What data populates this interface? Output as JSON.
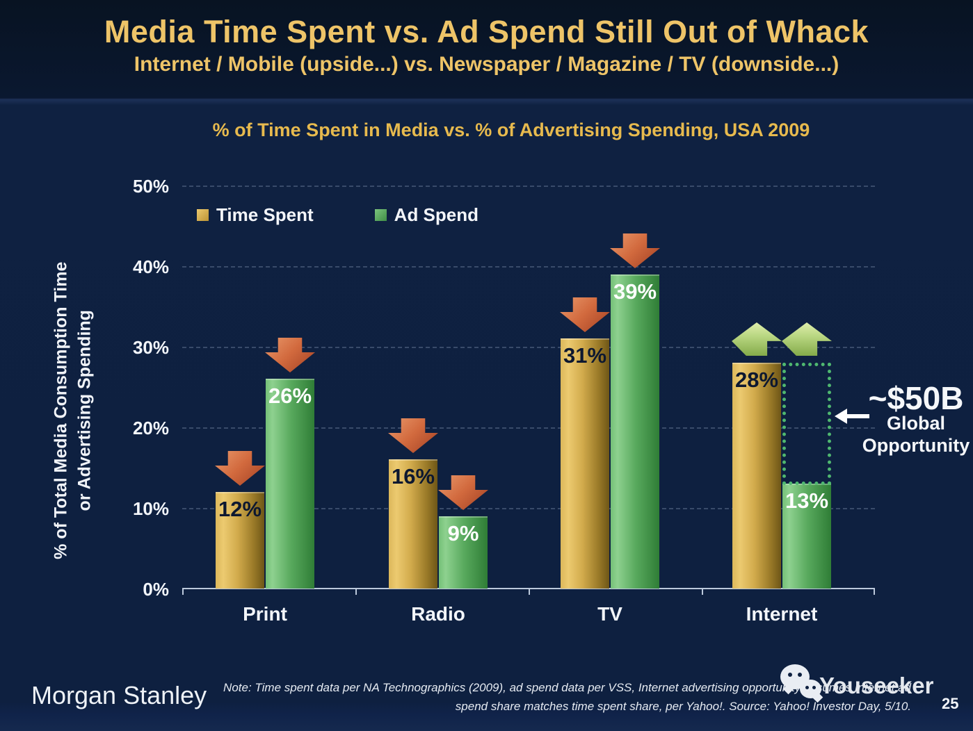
{
  "header": {
    "title": "Media Time Spent vs. Ad Spend Still Out of Whack",
    "subtitle": "Internet / Mobile (upside...) vs. Newspaper / Magazine / TV (downside...)",
    "title_color": "#eec468"
  },
  "chart_data": {
    "type": "bar",
    "title": "% of Time Spent in Media vs. % of Advertising Spending, USA 2009",
    "ylabel_line1": "% of Total Media Consumption Time",
    "ylabel_line2": "or Advertising Spending",
    "categories": [
      "Print",
      "Radio",
      "TV",
      "Internet"
    ],
    "series": [
      {
        "name": "Time Spent",
        "color": "#d9b254",
        "values": [
          12,
          16,
          31,
          28
        ],
        "labels": [
          "12%",
          "16%",
          "31%",
          "28%"
        ]
      },
      {
        "name": "Ad Spend",
        "color": "#57a85b",
        "values": [
          26,
          9,
          39,
          13
        ],
        "labels": [
          "26%",
          "9%",
          "39%",
          "13%"
        ]
      }
    ],
    "ylim": [
      0,
      50
    ],
    "yticks": [
      "50%",
      "40%",
      "30%",
      "20%",
      "10%",
      "0%"
    ],
    "grid": "dashed horizontal",
    "legend_position": "top-left inside plot",
    "trend_arrows": {
      "Print": "down",
      "Radio": "down",
      "TV": "down",
      "Internet": "up"
    },
    "arrow_colors": {
      "down": "#cc6a42",
      "up": "#b5d47e"
    },
    "opportunity_box": "dotted green rectangle from Internet Ad Spend (13%) up to Time Spent level (28%)"
  },
  "annotation": {
    "value": "~$50B",
    "line1": "Global",
    "line2": "Opportunity"
  },
  "footer": {
    "brand": "Morgan Stanley",
    "note_line1": "Note: Time spent data per NA Technographics (2009), ad spend data per VSS, Internet advertising opportunity assumes Internet ad",
    "note_line2": "spend share matches time spent share, per Yahoo!. Source: Yahoo! Investor Day, 5/10.",
    "watermark": "Youseeker",
    "page_number": "25"
  }
}
